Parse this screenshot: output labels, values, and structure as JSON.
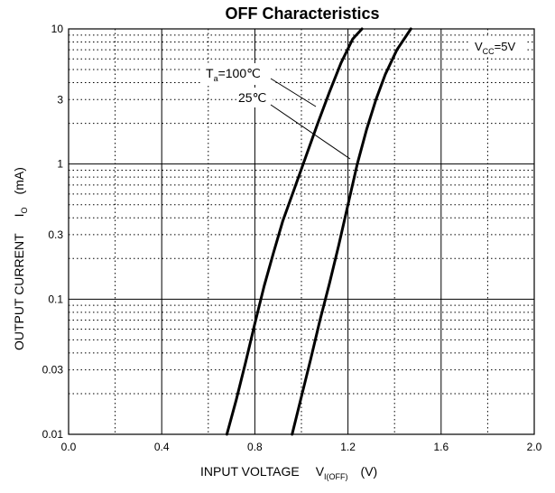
{
  "chart_data": {
    "type": "line",
    "title": "OFF Characteristics",
    "xlabel": {
      "main": "INPUT VOLTAGE",
      "symbol": "V",
      "subscript": "I(OFF)",
      "unit": "(V)"
    },
    "ylabel": {
      "main": "OUTPUT CURRENT",
      "symbol": "I",
      "subscript": "O",
      "unit": "(mA)"
    },
    "xlim": [
      0.0,
      2.0
    ],
    "ylim": [
      0.01,
      10
    ],
    "yscale": "log",
    "grid": true,
    "x_tick_labels": [
      "0.0",
      "0.4",
      "0.8",
      "1.2",
      "1.6",
      "2.0"
    ],
    "x_ticks": [
      0.0,
      0.4,
      0.8,
      1.2,
      1.6,
      2.0
    ],
    "y_tick_labels": [
      "10",
      "3",
      "1",
      "0.3",
      "0.1",
      "0.03",
      "0.01"
    ],
    "y_ticks": [
      10,
      3,
      1,
      0.3,
      0.1,
      0.03,
      0.01
    ],
    "condition": {
      "symbol": "V",
      "subscript": "CC",
      "value": "=5V"
    },
    "series_labels": {
      "label_1": {
        "symbol": "T",
        "subscript": "a",
        "value": "=100℃"
      },
      "label_2": {
        "text": "25℃"
      }
    },
    "series": [
      {
        "x": [
          0.68,
          0.72,
          0.76,
          0.8,
          0.84,
          0.88,
          0.92,
          0.97,
          1.02,
          1.07,
          1.12,
          1.17,
          1.22,
          1.26
        ],
        "y": [
          0.01,
          0.018,
          0.034,
          0.066,
          0.125,
          0.22,
          0.38,
          0.66,
          1.15,
          2.0,
          3.4,
          5.6,
          8.4,
          10
        ]
      },
      {
        "x": [
          0.96,
          1.0,
          1.04,
          1.08,
          1.12,
          1.16,
          1.2,
          1.24,
          1.28,
          1.32,
          1.36,
          1.41,
          1.47
        ],
        "y": [
          0.01,
          0.019,
          0.036,
          0.07,
          0.13,
          0.25,
          0.5,
          1.0,
          1.8,
          3.0,
          4.6,
          7.0,
          10
        ]
      }
    ]
  }
}
